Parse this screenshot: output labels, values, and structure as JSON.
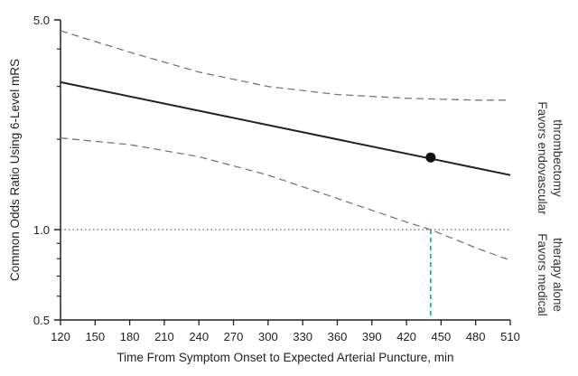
{
  "chart_data": {
    "type": "line",
    "xlabel": "Time From Symptom Onset to Expected Arterial Puncture, min",
    "ylabel": "Common Odds Ratio Using 6-Level mRS",
    "x_ticks": [
      120,
      150,
      180,
      210,
      240,
      270,
      300,
      330,
      360,
      390,
      420,
      450,
      480,
      510
    ],
    "y_ticks": [
      0.5,
      1.0,
      5.0
    ],
    "y_tick_labels": [
      "0.5",
      "1.0",
      "5.0"
    ],
    "y_scale": "log",
    "xlim": [
      120,
      510
    ],
    "ylim": [
      0.5,
      5.0
    ],
    "grid": false,
    "reference_line": {
      "y": 1.0,
      "style": "dotted"
    },
    "threshold_line": {
      "x": 441,
      "style": "dashed",
      "color": "#1aa3b0"
    },
    "series": [
      {
        "role": "estimate",
        "style": "solid",
        "color": "#222222",
        "x": [
          120,
          510
        ],
        "y": [
          3.1,
          1.52
        ]
      },
      {
        "role": "upper_ci",
        "style": "dashed",
        "color": "#777777",
        "x": [
          120,
          180,
          240,
          300,
          360,
          420,
          480,
          510
        ],
        "y": [
          4.6,
          3.9,
          3.35,
          3.0,
          2.82,
          2.74,
          2.7,
          2.7
        ]
      },
      {
        "role": "lower_ci",
        "style": "dashed",
        "color": "#777777",
        "x": [
          120,
          180,
          240,
          300,
          360,
          420,
          441,
          480,
          510
        ],
        "y": [
          2.02,
          1.92,
          1.75,
          1.52,
          1.27,
          1.06,
          1.0,
          0.87,
          0.79
        ]
      }
    ],
    "highlight_point": {
      "x": 441,
      "y": 1.74
    },
    "side_labels": {
      "upper": [
        "Favors endovascular",
        "thrombectomy"
      ],
      "lower": [
        "Favors medical",
        "therapy alone"
      ]
    }
  }
}
